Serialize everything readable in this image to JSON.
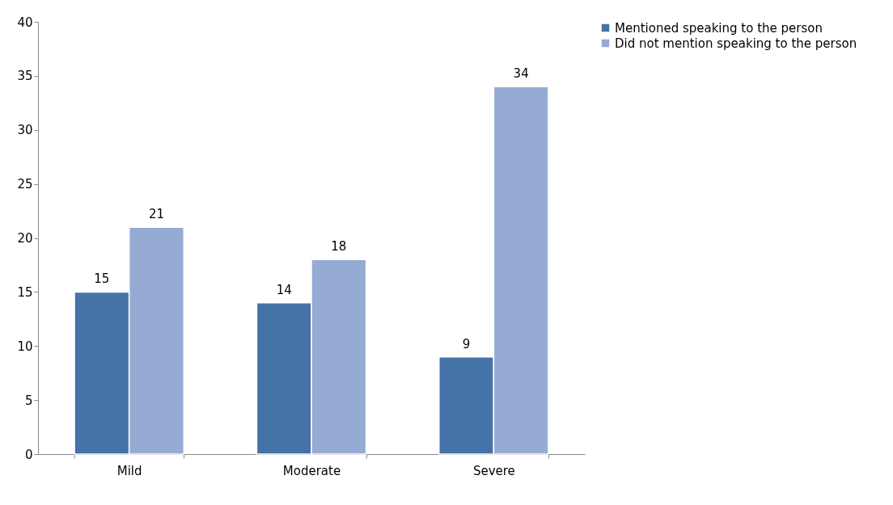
{
  "chart_data": {
    "type": "bar",
    "categories": [
      "Mild",
      "Moderate",
      "Severe"
    ],
    "series": [
      {
        "name": "Mentioned speaking to the person",
        "color": "#4572a7",
        "values": [
          15,
          14,
          9
        ]
      },
      {
        "name": "Did not mention speaking to the person",
        "color": "#95abd4",
        "values": [
          21,
          18,
          34
        ]
      }
    ],
    "ylim": [
      0,
      40
    ],
    "yticks": [
      0,
      5,
      10,
      15,
      20,
      25,
      30,
      35,
      40
    ],
    "data_labels": true,
    "legend": "right",
    "grid": false
  }
}
